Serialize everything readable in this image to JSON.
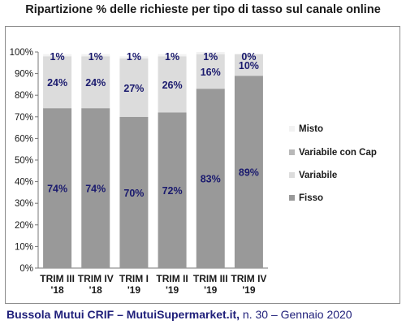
{
  "title": "Ripartizione % delle richieste per tipo di tasso sul canale online",
  "footer": {
    "source_bold": "Bussola Mutui CRIF – MutuiSupermarket.it,",
    "source_rest": " n. 30 – Gennaio 2020"
  },
  "chart_data": {
    "type": "bar",
    "stacked": true,
    "title": "Ripartizione % delle richieste per tipo di tasso sul canale online",
    "categories": [
      [
        "TRIM III",
        "'18"
      ],
      [
        "TRIM IV",
        "'18"
      ],
      [
        "TRIM I",
        "'19"
      ],
      [
        "TRIM II",
        "'19"
      ],
      [
        "TRIM III",
        "'19"
      ],
      [
        "TRIM IV",
        "'19"
      ]
    ],
    "series": [
      {
        "name": "Fisso",
        "color": "#999999",
        "values": [
          74,
          74,
          70,
          72,
          83,
          89
        ],
        "labels": [
          "74%",
          "74%",
          "70%",
          "72%",
          "83%",
          "89%"
        ]
      },
      {
        "name": "Variabile",
        "color": "#dcdcdc",
        "values": [
          24,
          24,
          27,
          26,
          16,
          10
        ],
        "labels": [
          "24%",
          "24%",
          "27%",
          "26%",
          "16%",
          "10%"
        ]
      },
      {
        "name": "Variabile con Cap",
        "color": "#b8b8b8",
        "values": [
          0,
          0,
          0,
          0,
          0,
          0
        ],
        "labels": [
          "",
          "",
          "",
          "",
          "",
          ""
        ]
      },
      {
        "name": "Misto",
        "color": "#f2f2f2",
        "values": [
          1,
          1,
          1,
          1,
          1,
          0
        ],
        "labels": [
          "1%",
          "1%",
          "1%",
          "1%",
          "1%",
          "0%"
        ]
      }
    ],
    "legend_order": [
      "Misto",
      "Variabile con Cap",
      "Variabile",
      "Fisso"
    ],
    "yticks": [
      "0%",
      "10%",
      "20%",
      "30%",
      "40%",
      "50%",
      "60%",
      "70%",
      "80%",
      "90%",
      "100%"
    ],
    "ylim": [
      0,
      100
    ],
    "grid": false,
    "legend_position": "right",
    "label_color": "#1a1a6e"
  }
}
